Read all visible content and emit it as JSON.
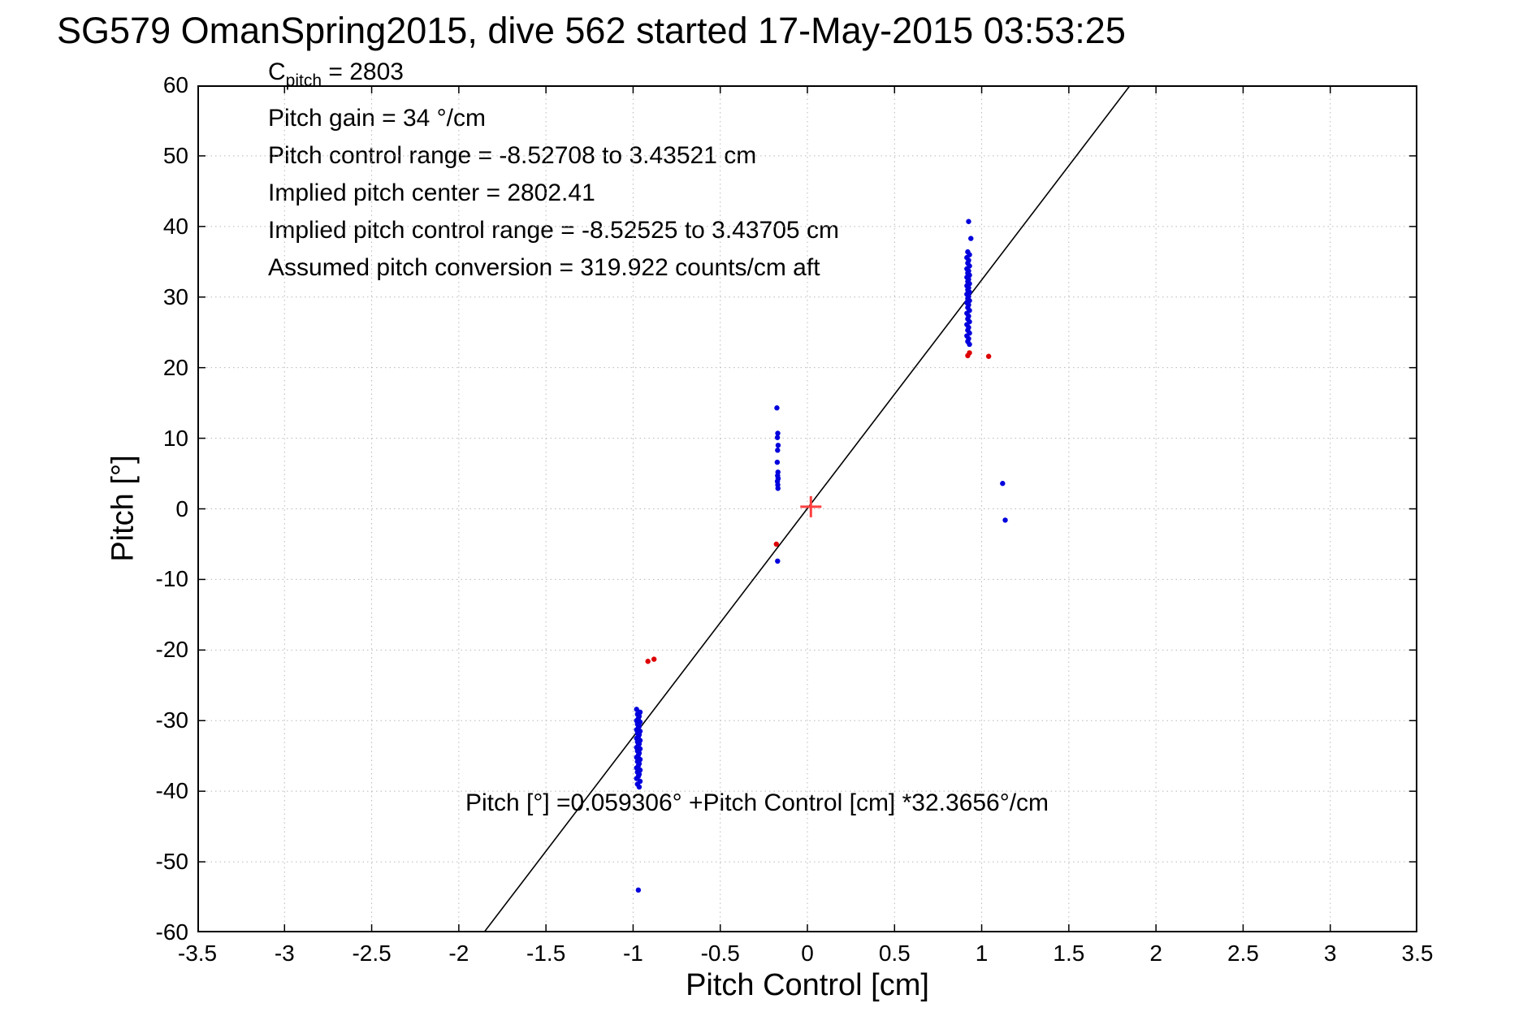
{
  "title": "SG579 OmanSpring2015, dive 562 started 17-May-2015 03:53:25",
  "annotations": {
    "c_pitch": {
      "base": "C",
      "sub": "pitch",
      "rest": " = 2803"
    },
    "lines": [
      "Pitch gain = 34 °/cm",
      "Pitch control range = -8.52708 to 3.43521 cm",
      "Implied pitch center = 2802.41",
      "Implied pitch control range = -8.52525 to 3.43705 cm",
      "Assumed pitch conversion = 319.922 counts/cm aft"
    ],
    "fit_equation": "Pitch [°] =0.059306° +Pitch Control [cm] *32.3656°/cm"
  },
  "chart_data": {
    "type": "scatter",
    "title": "SG579 OmanSpring2015, dive 562 started 17-May-2015 03:53:25",
    "xlabel": "Pitch Control [cm]",
    "ylabel": "Pitch [°]",
    "xlim": [
      -3.5,
      3.5
    ],
    "ylim": [
      -60,
      60
    ],
    "xticks": [
      -3.5,
      -3,
      -2.5,
      -2,
      -1.5,
      -1,
      -0.5,
      0,
      0.5,
      1,
      1.5,
      2,
      2.5,
      3,
      3.5
    ],
    "yticks": [
      -60,
      -50,
      -40,
      -30,
      -20,
      -10,
      0,
      10,
      20,
      30,
      40,
      50,
      60
    ],
    "grid": true,
    "fit_line": {
      "intercept": 0.059306,
      "slope": 32.3656,
      "color": "#000000"
    },
    "origin_marker": {
      "x": 0.02,
      "y": 0.3,
      "color": "#ff4040",
      "shape": "plus"
    },
    "colors": {
      "observed": "#0000dd",
      "flagged": "#dd0000"
    },
    "series": [
      {
        "name": "observed-pitch",
        "color": "#0000dd",
        "marker": "dot",
        "points": [
          [
            -0.98,
            -28.4
          ],
          [
            -0.96,
            -28.8
          ],
          [
            -0.975,
            -29.1
          ],
          [
            -0.965,
            -29.4
          ],
          [
            -0.97,
            -29.7
          ],
          [
            -0.98,
            -30.0
          ],
          [
            -0.96,
            -30.2
          ],
          [
            -0.975,
            -30.5
          ],
          [
            -0.965,
            -30.8
          ],
          [
            -0.97,
            -31.0
          ],
          [
            -0.98,
            -31.3
          ],
          [
            -0.96,
            -31.5
          ],
          [
            -0.975,
            -31.8
          ],
          [
            -0.965,
            -32.0
          ],
          [
            -0.97,
            -32.3
          ],
          [
            -0.98,
            -32.5
          ],
          [
            -0.96,
            -32.8
          ],
          [
            -0.975,
            -33.0
          ],
          [
            -0.965,
            -33.3
          ],
          [
            -0.97,
            -33.5
          ],
          [
            -0.98,
            -33.8
          ],
          [
            -0.96,
            -34.0
          ],
          [
            -0.975,
            -34.3
          ],
          [
            -0.965,
            -34.6
          ],
          [
            -0.97,
            -34.9
          ],
          [
            -0.98,
            -35.2
          ],
          [
            -0.96,
            -35.5
          ],
          [
            -0.975,
            -35.8
          ],
          [
            -0.965,
            -36.1
          ],
          [
            -0.97,
            -36.4
          ],
          [
            -0.98,
            -36.7
          ],
          [
            -0.96,
            -37.0
          ],
          [
            -0.975,
            -37.3
          ],
          [
            -0.965,
            -37.6
          ],
          [
            -0.97,
            -37.9
          ],
          [
            -0.98,
            -38.2
          ],
          [
            -0.96,
            -38.6
          ],
          [
            -0.975,
            -39.0
          ],
          [
            -0.965,
            -39.4
          ],
          [
            -0.97,
            -54.0
          ],
          [
            -0.175,
            14.3
          ],
          [
            -0.17,
            10.7
          ],
          [
            -0.172,
            10.1
          ],
          [
            -0.168,
            9.0
          ],
          [
            -0.171,
            8.3
          ],
          [
            -0.173,
            6.6
          ],
          [
            -0.169,
            5.2
          ],
          [
            -0.171,
            4.7
          ],
          [
            -0.168,
            4.3
          ],
          [
            -0.172,
            3.9
          ],
          [
            -0.17,
            3.4
          ],
          [
            -0.169,
            2.9
          ],
          [
            -0.171,
            -7.4
          ],
          [
            0.925,
            40.7
          ],
          [
            0.938,
            38.3
          ],
          [
            0.92,
            36.4
          ],
          [
            0.93,
            36.0
          ],
          [
            0.915,
            35.6
          ],
          [
            0.925,
            35.2
          ],
          [
            0.92,
            34.8
          ],
          [
            0.93,
            34.4
          ],
          [
            0.915,
            34.0
          ],
          [
            0.925,
            33.7
          ],
          [
            0.92,
            33.4
          ],
          [
            0.93,
            33.1
          ],
          [
            0.915,
            32.8
          ],
          [
            0.925,
            32.5
          ],
          [
            0.92,
            32.2
          ],
          [
            0.93,
            31.9
          ],
          [
            0.915,
            31.6
          ],
          [
            0.925,
            31.3
          ],
          [
            0.92,
            31.0
          ],
          [
            0.93,
            30.7
          ],
          [
            0.915,
            30.4
          ],
          [
            0.925,
            30.1
          ],
          [
            0.92,
            29.8
          ],
          [
            0.93,
            29.5
          ],
          [
            0.915,
            29.2
          ],
          [
            0.925,
            28.9
          ],
          [
            0.92,
            28.5
          ],
          [
            0.93,
            28.1
          ],
          [
            0.915,
            27.7
          ],
          [
            0.925,
            27.3
          ],
          [
            0.92,
            26.9
          ],
          [
            0.93,
            26.5
          ],
          [
            0.915,
            26.1
          ],
          [
            0.925,
            25.7
          ],
          [
            0.92,
            25.3
          ],
          [
            0.93,
            24.9
          ],
          [
            0.915,
            24.5
          ],
          [
            0.925,
            24.1
          ],
          [
            0.92,
            23.7
          ],
          [
            0.93,
            23.3
          ],
          [
            1.12,
            3.6
          ],
          [
            1.135,
            -1.6
          ]
        ]
      },
      {
        "name": "flagged-pitch",
        "color": "#dd0000",
        "marker": "dot",
        "points": [
          [
            -0.915,
            -21.6
          ],
          [
            -0.88,
            -21.3
          ],
          [
            -0.178,
            -5.0
          ],
          [
            0.92,
            21.7
          ],
          [
            0.93,
            22.1
          ],
          [
            1.04,
            21.6
          ]
        ]
      }
    ]
  }
}
